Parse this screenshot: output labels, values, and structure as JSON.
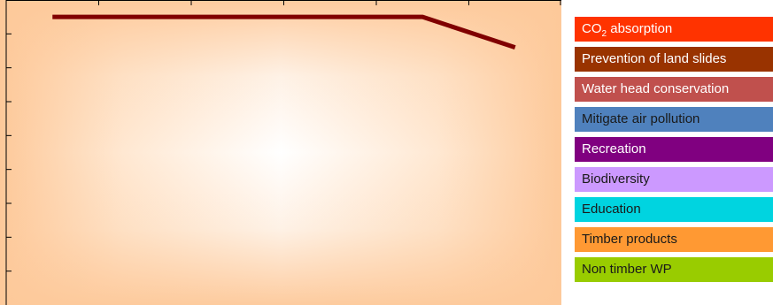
{
  "chart_data": {
    "type": "line",
    "title": "",
    "xlabel": "",
    "ylabel": "",
    "x": [
      1,
      2,
      3,
      4,
      5,
      6
    ],
    "xlim": [
      0.5,
      6.5
    ],
    "ylim": [
      0,
      9
    ],
    "grid": false,
    "legend_position": "right",
    "series": [
      {
        "name": "Prevention of land slides",
        "color": "#800000",
        "values": [
          8.5,
          8.5,
          8.5,
          8.5,
          8.5,
          7.6
        ]
      }
    ],
    "legend": [
      {
        "label_main": "CO",
        "label_sub": "2",
        "label_rest": " absorption",
        "color": "#ff3300",
        "text_color": "#ffffff"
      },
      {
        "label_main": "Prevention of land slides",
        "color": "#993300",
        "text_color": "#ffffff"
      },
      {
        "label_main": "Water head conservation",
        "color": "#c0504d",
        "text_color": "#ffffff"
      },
      {
        "label_main": "Mitigate air pollution",
        "color": "#4f81bd",
        "text_color": "#1a1a1a"
      },
      {
        "label_main": "Recreation",
        "color": "#800080",
        "text_color": "#ffffff"
      },
      {
        "label_main": "Biodiversity",
        "color": "#cc99ff",
        "text_color": "#1a1a1a"
      },
      {
        "label_main": "Education",
        "color": "#00d4e0",
        "text_color": "#1a1a1a"
      },
      {
        "label_main": "Timber products",
        "color": "#ff9933",
        "text_color": "#1a1a1a"
      },
      {
        "label_main": "Non timber WP",
        "color": "#99cc00",
        "text_color": "#1a1a1a"
      }
    ]
  },
  "colors": {
    "plot_center": "#ffffff",
    "plot_edge": "#fdc99a",
    "axis": "#000000"
  }
}
